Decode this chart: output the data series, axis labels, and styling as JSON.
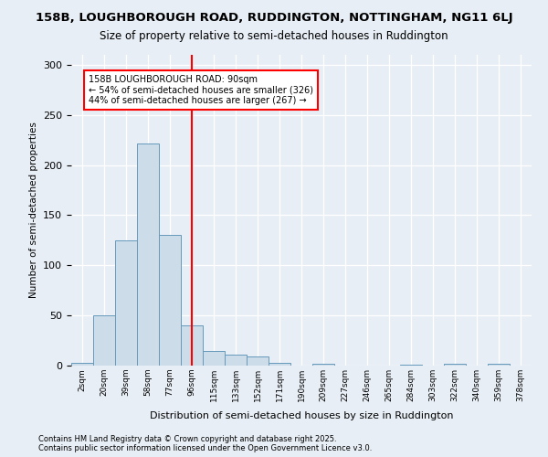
{
  "title_line1": "158B, LOUGHBOROUGH ROAD, RUDDINGTON, NOTTINGHAM, NG11 6LJ",
  "title_line2": "Size of property relative to semi-detached houses in Ruddington",
  "xlabel": "Distribution of semi-detached houses by size in Ruddington",
  "ylabel": "Number of semi-detached properties",
  "footer_line1": "Contains HM Land Registry data © Crown copyright and database right 2025.",
  "footer_line2": "Contains public sector information licensed under the Open Government Licence v3.0.",
  "bin_labels": [
    "2sqm",
    "20sqm",
    "39sqm",
    "58sqm",
    "77sqm",
    "96sqm",
    "115sqm",
    "133sqm",
    "152sqm",
    "171sqm",
    "190sqm",
    "209sqm",
    "227sqm",
    "246sqm",
    "265sqm",
    "284sqm",
    "303sqm",
    "322sqm",
    "340sqm",
    "359sqm",
    "378sqm"
  ],
  "bar_values": [
    3,
    50,
    125,
    222,
    130,
    40,
    15,
    11,
    9,
    3,
    0,
    2,
    0,
    0,
    0,
    1,
    0,
    2,
    0,
    2,
    0
  ],
  "bar_color": "#ccdce8",
  "bar_edge_color": "#6699bb",
  "annotation_text": "158B LOUGHBOROUGH ROAD: 90sqm\n← 54% of semi-detached houses are smaller (326)\n44% of semi-detached houses are larger (267) →",
  "vline_x": 5.0,
  "vline_color": "red",
  "annotation_box_color": "white",
  "annotation_box_edge": "red",
  "ylim": [
    0,
    310
  ],
  "yticks": [
    0,
    50,
    100,
    150,
    200,
    250,
    300
  ],
  "background_color": "#e8eef5",
  "plot_bg_color": "#e8eef5"
}
